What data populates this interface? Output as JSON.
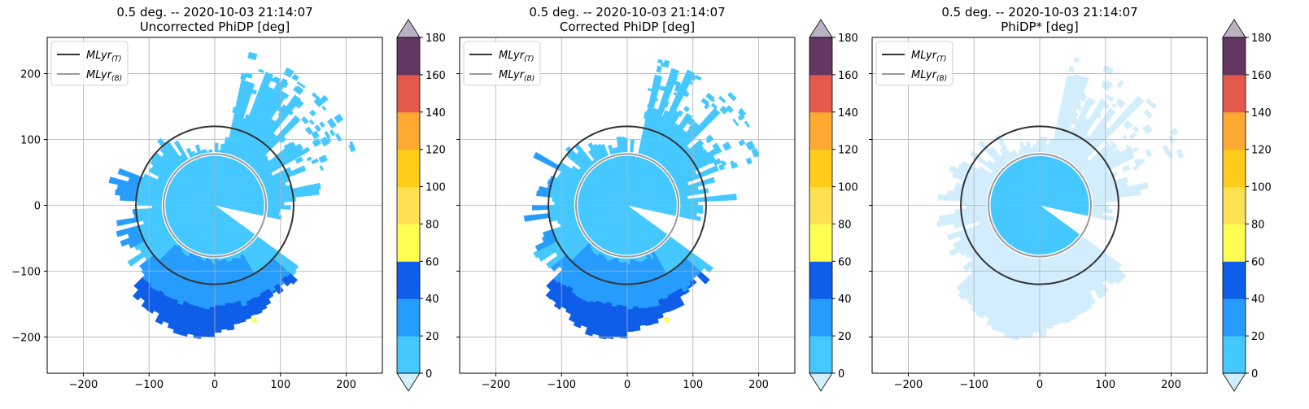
{
  "palette": {
    "levels": [
      0,
      20,
      40,
      60,
      80,
      100,
      120,
      140,
      160,
      180
    ],
    "colors": [
      "#45c8ff",
      "#279cff",
      "#0e5ee9",
      "#ffff52",
      "#ffe152",
      "#ffcc19",
      "#ffa832",
      "#e5594c",
      "#643763"
    ],
    "under": "#d2eefc",
    "over": "#bcb1c2",
    "grid": "#b0b0b0",
    "mlyr_t": "#333333",
    "mlyr_b": "#9a9a9a"
  },
  "colorbar": {
    "ticks": [
      "0",
      "20",
      "40",
      "60",
      "80",
      "100",
      "120",
      "140",
      "160",
      "180"
    ]
  },
  "chart_data": [
    {
      "type": "heatmap",
      "title": "0.5 deg. -- 2020-10-03 21:14:07",
      "subtitle": "Uncorrected PhiDP [deg]",
      "xlim": [
        -255,
        255
      ],
      "ylim": [
        -255,
        255
      ],
      "xticks": [
        "−200",
        "−100",
        "0",
        "100",
        "200"
      ],
      "yticks": [
        "200",
        "100",
        "0",
        "−100",
        "−200"
      ],
      "grid": true,
      "legend": {
        "position": "top-left",
        "entries": [
          "MLyr(T)",
          "MLyr(B)"
        ]
      },
      "melting_layer_km": {
        "top": 120,
        "bottom": 78
      },
      "field": "uncorrected"
    },
    {
      "type": "heatmap",
      "title": "0.5 deg. -- 2020-10-03 21:14:07",
      "subtitle": "Corrected PhiDP [deg]",
      "xlim": [
        -255,
        255
      ],
      "ylim": [
        -255,
        255
      ],
      "xticks": [
        "−200",
        "−100",
        "0",
        "100",
        "200"
      ],
      "yticks": [],
      "grid": true,
      "legend": {
        "position": "top-left",
        "entries": [
          "MLyr(T)",
          "MLyr(B)"
        ]
      },
      "melting_layer_km": {
        "top": 120,
        "bottom": 78
      },
      "field": "corrected"
    },
    {
      "type": "heatmap",
      "title": "0.5 deg. -- 2020-10-03 21:14:07",
      "subtitle": "PhiDP* [deg]",
      "xlim": [
        -255,
        255
      ],
      "ylim": [
        -255,
        255
      ],
      "xticks": [
        "−200",
        "−100",
        "0",
        "100",
        "200"
      ],
      "yticks": [],
      "grid": true,
      "legend": {
        "position": "top-left",
        "entries": [
          "MLyr(T)",
          "MLyr(B)"
        ]
      },
      "melting_layer_km": {
        "top": 120,
        "bottom": 78
      },
      "field": "phidp_star"
    }
  ]
}
